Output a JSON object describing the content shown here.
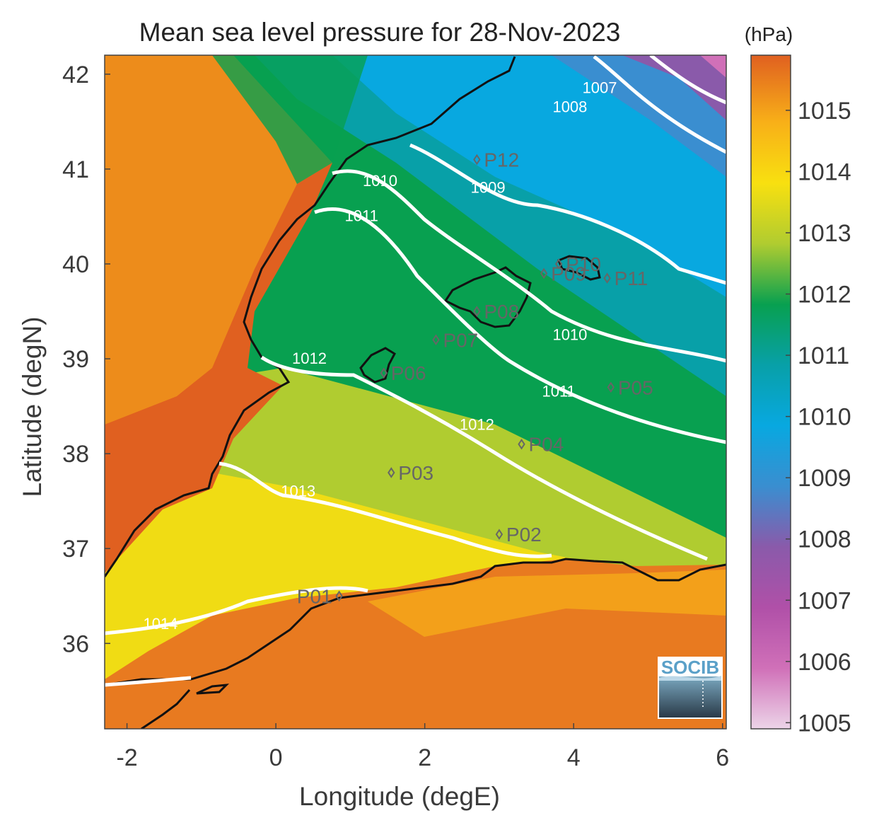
{
  "title": "Mean sea level pressure for 28-Nov-2023",
  "unit_label": "(hPa)",
  "xlabel": "Longitude (degE)",
  "ylabel": "Latitude (degN)",
  "logo_text": "SOCIB",
  "chart_data": {
    "type": "heatmap",
    "title": "Mean sea level pressure for 28-Nov-2023",
    "xlabel": "Longitude (degE)",
    "ylabel": "Latitude (degN)",
    "xlim": [
      -2.3,
      6.05
    ],
    "ylim": [
      35.1,
      42.2
    ],
    "x_ticks": [
      -2,
      0,
      2,
      4,
      6
    ],
    "y_ticks": [
      36,
      37,
      38,
      39,
      40,
      41,
      42
    ],
    "colorbar": {
      "label": "(hPa)",
      "range": [
        1004.9,
        1015.9
      ],
      "ticks": [
        1005,
        1006,
        1007,
        1008,
        1009,
        1010,
        1011,
        1012,
        1013,
        1014,
        1015
      ],
      "colors": [
        "#e8c8e0",
        "#d070b8",
        "#8a5aaa",
        "#3a8ed0",
        "#08a8e0",
        "#08a0a8",
        "#08a050",
        "#b0cc30",
        "#f8e010",
        "#f8b018",
        "#e06020"
      ]
    },
    "contour_labels": [
      {
        "value": "1007",
        "lon": 4.35,
        "lat": 41.8
      },
      {
        "value": "1008",
        "lon": 3.95,
        "lat": 41.6
      },
      {
        "value": "1009",
        "lon": 2.85,
        "lat": 40.75
      },
      {
        "value": "1010",
        "lon": 1.4,
        "lat": 40.82
      },
      {
        "value": "1010",
        "lon": 3.95,
        "lat": 39.2
      },
      {
        "value": "1011",
        "lon": 1.15,
        "lat": 40.45
      },
      {
        "value": "1011",
        "lon": 3.8,
        "lat": 38.6
      },
      {
        "value": "1012",
        "lon": 0.45,
        "lat": 38.95
      },
      {
        "value": "1012",
        "lon": 2.7,
        "lat": 38.25
      },
      {
        "value": "1013",
        "lon": 0.3,
        "lat": 37.55
      },
      {
        "value": "1014",
        "lon": -1.55,
        "lat": 36.15
      }
    ],
    "stations": [
      {
        "id": "P01",
        "lon": 0.85,
        "lat": 36.5
      },
      {
        "id": "P02",
        "lon": 3.0,
        "lat": 37.15
      },
      {
        "id": "P03",
        "lon": 1.55,
        "lat": 37.8
      },
      {
        "id": "P04",
        "lon": 3.3,
        "lat": 38.1
      },
      {
        "id": "P05",
        "lon": 4.5,
        "lat": 38.7
      },
      {
        "id": "P06",
        "lon": 1.45,
        "lat": 38.85
      },
      {
        "id": "P07",
        "lon": 2.15,
        "lat": 39.2
      },
      {
        "id": "P08",
        "lon": 2.7,
        "lat": 39.5
      },
      {
        "id": "P09",
        "lon": 3.6,
        "lat": 39.9
      },
      {
        "id": "P10",
        "lon": 3.8,
        "lat": 40.0
      },
      {
        "id": "P11",
        "lon": 4.45,
        "lat": 39.85
      },
      {
        "id": "P12",
        "lon": 2.7,
        "lat": 41.1
      }
    ]
  }
}
